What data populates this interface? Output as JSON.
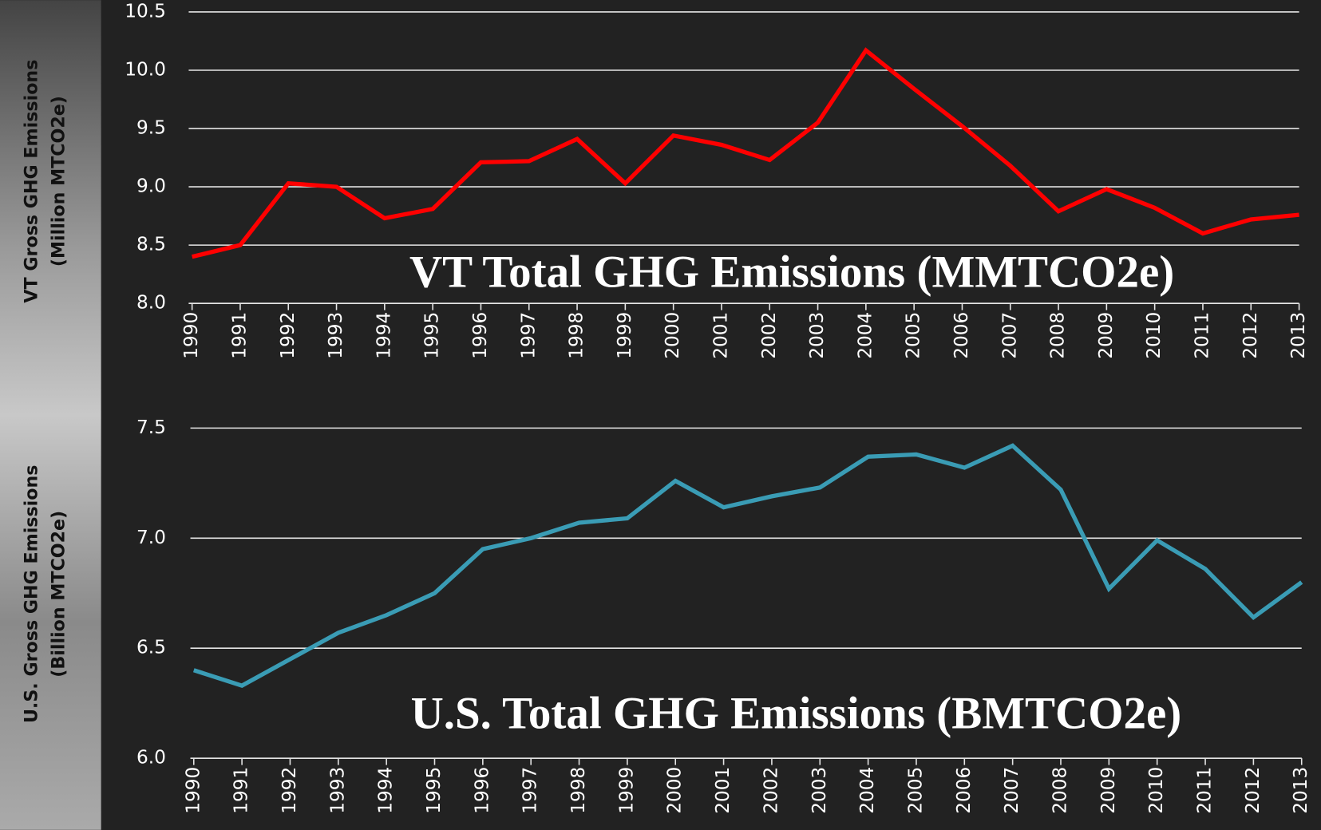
{
  "chart_data": [
    {
      "type": "line",
      "title": "VT Total GHG Emissions (MMTCO2e)",
      "ylabel": [
        "VT Gross GHG Emissions",
        "(Million MTCO2e)"
      ],
      "categories": [
        "1990",
        "1991",
        "1992",
        "1993",
        "1994",
        "1995",
        "1996",
        "1997",
        "1998",
        "1999",
        "2000",
        "2001",
        "2002",
        "2003",
        "2004",
        "2005",
        "2006",
        "2007",
        "2008",
        "2009",
        "2010",
        "2011",
        "2012",
        "2013"
      ],
      "values": [
        8.4,
        8.5,
        9.03,
        9.0,
        8.73,
        8.81,
        9.21,
        9.22,
        9.41,
        9.03,
        9.44,
        9.36,
        9.23,
        9.55,
        10.17,
        9.84,
        9.52,
        9.18,
        8.79,
        8.98,
        8.82,
        8.6,
        8.72,
        8.76
      ],
      "color": "#ff0000",
      "ylim": [
        8.0,
        10.5
      ],
      "yticks": [
        {
          "value": 8.0,
          "label": "8.0"
        },
        8.5,
        {
          "value": 9.0,
          "label": "9.0"
        },
        9.5,
        {
          "value": 10.0,
          "label": "10.0"
        },
        10.5
      ],
      "grid": true
    },
    {
      "type": "line",
      "title": "U.S. Total GHG Emissions (BMTCO2e)",
      "ylabel": [
        "U.S. Gross GHG Emissions",
        "(Billion MTCO2e)"
      ],
      "categories": [
        "1990",
        "1991",
        "1992",
        "1993",
        "1994",
        "1995",
        "1996",
        "1997",
        "1998",
        "1999",
        "2000",
        "2001",
        "2002",
        "2003",
        "2004",
        "2005",
        "2006",
        "2007",
        "2008",
        "2009",
        "2010",
        "2011",
        "2012",
        "2013"
      ],
      "values": [
        6.4,
        6.33,
        6.45,
        6.57,
        6.65,
        6.75,
        6.95,
        7.0,
        7.07,
        7.09,
        7.26,
        7.14,
        7.19,
        7.23,
        7.37,
        7.38,
        7.32,
        7.42,
        7.22,
        6.77,
        6.99,
        6.86,
        6.64,
        6.8
      ],
      "color": "#3a9cb5",
      "ylim": [
        6.0,
        7.5
      ],
      "yticks": [
        {
          "value": 6.0,
          "label": "6.0"
        },
        6.5,
        {
          "value": 7.0,
          "label": "7.0"
        },
        7.5
      ],
      "grid": true
    }
  ]
}
